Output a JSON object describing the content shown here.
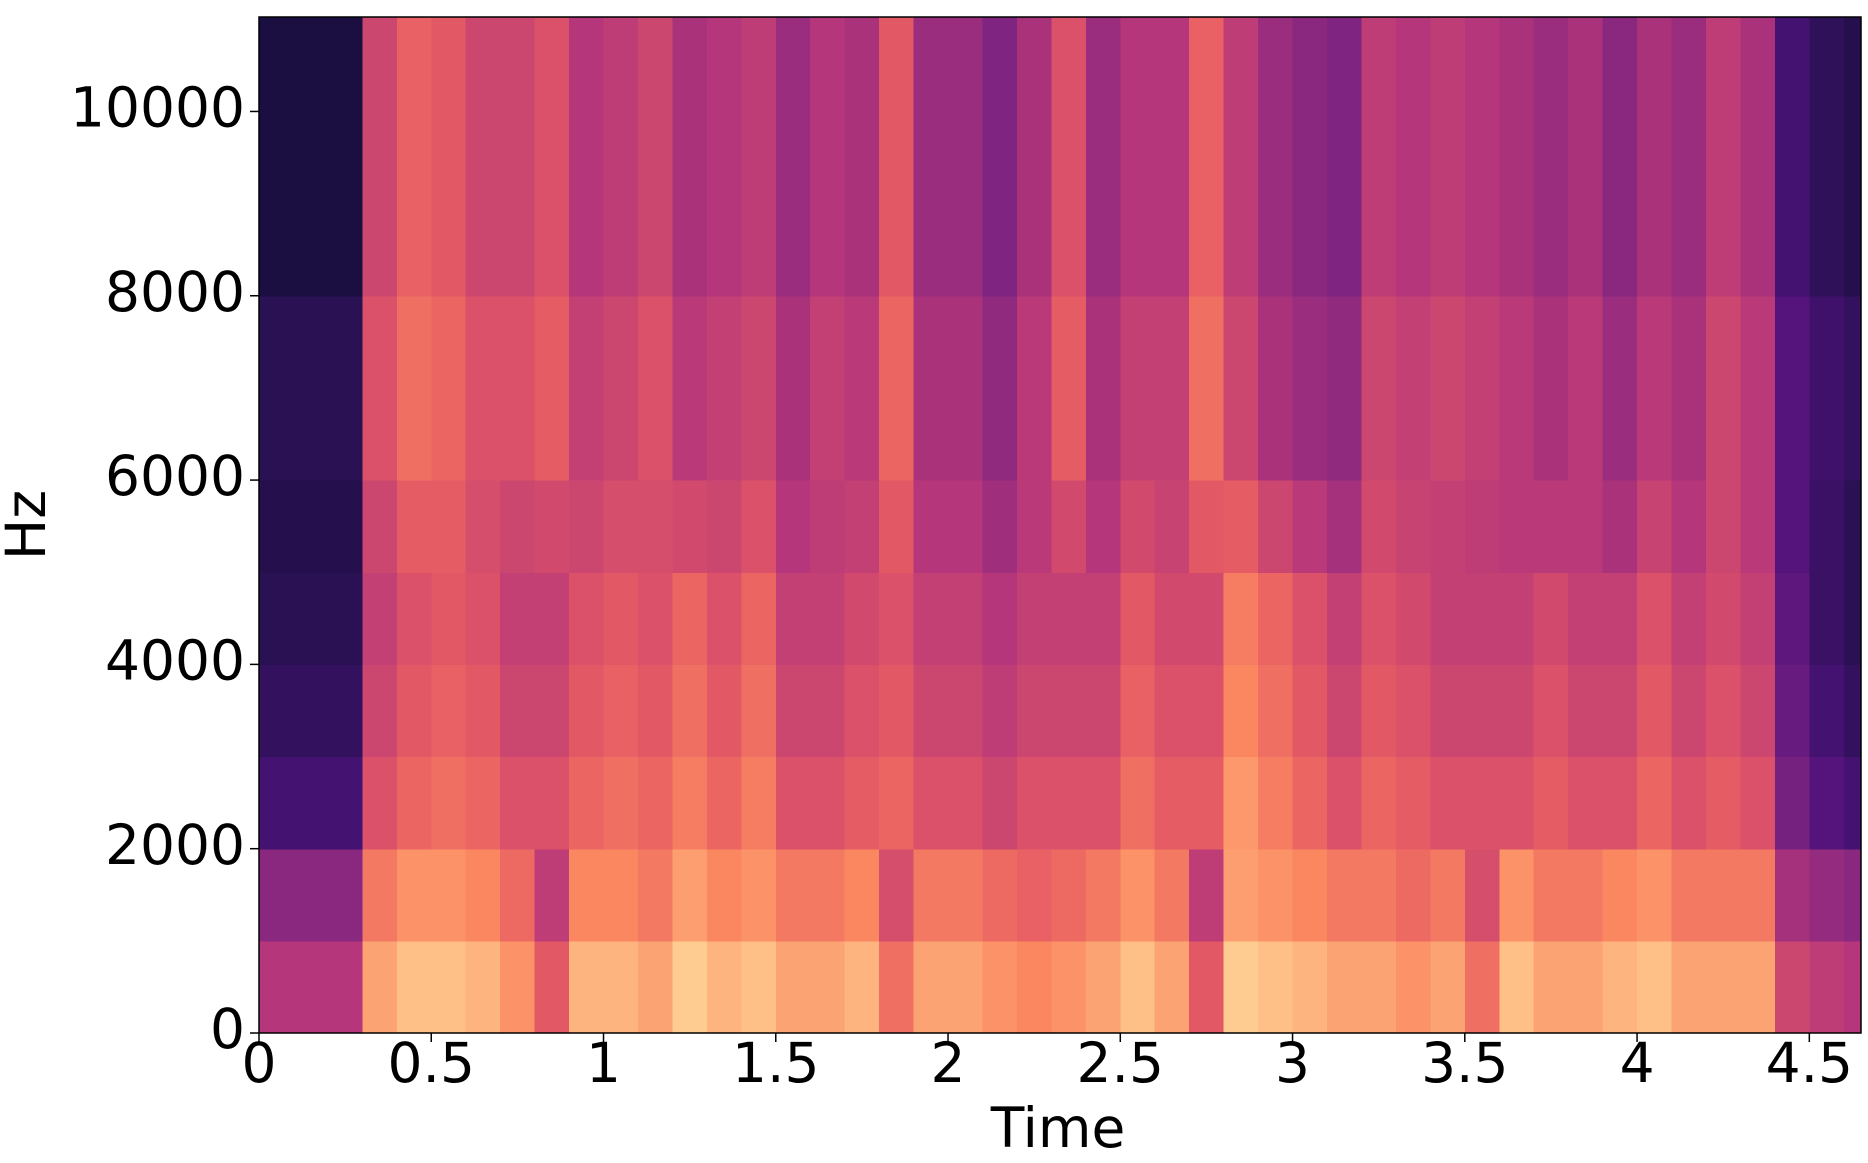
{
  "chart_data": {
    "type": "heatmap",
    "x_label": "Time",
    "y_label": "Hz",
    "colormap": "magma",
    "zlim": [
      -80,
      0
    ],
    "xlim": [
      0,
      4.65
    ],
    "ylim": [
      0,
      11025
    ],
    "xticks": [
      0,
      0.5,
      1,
      1.5,
      2,
      2.5,
      3,
      3.5,
      4,
      4.5
    ],
    "yticks": [
      0,
      2000,
      4000,
      6000,
      8000,
      10000
    ],
    "xbins": [
      0,
      0.1,
      0.2,
      0.3,
      0.4,
      0.5,
      0.6,
      0.7,
      0.8,
      0.9,
      1,
      1.1,
      1.2,
      1.3,
      1.4,
      1.5,
      1.6,
      1.7,
      1.8,
      1.9,
      2,
      2.1,
      2.2,
      2.3,
      2.4,
      2.5,
      2.6,
      2.7,
      2.8,
      2.9,
      3,
      3.1,
      3.2,
      3.3,
      3.4,
      3.5,
      3.6,
      3.7,
      3.8,
      3.9,
      4,
      4.1,
      4.2,
      4.3,
      4.4,
      4.5,
      4.6,
      4.65
    ],
    "ybins": [
      0,
      1000,
      2000,
      3000,
      4000,
      5000,
      6000,
      7000,
      8000,
      9000,
      10000,
      11025
    ],
    "z": [
      [
        -40,
        -40,
        -40,
        -15,
        -10,
        -10,
        -12,
        -18,
        -30,
        -12,
        -12,
        -15,
        -8,
        -12,
        -10,
        -15,
        -15,
        -12,
        -25,
        -15,
        -15,
        -18,
        -20,
        -18,
        -15,
        -10,
        -15,
        -30,
        -8,
        -10,
        -12,
        -15,
        -15,
        -18,
        -15,
        -25,
        -10,
        -15,
        -15,
        -12,
        -10,
        -15,
        -15,
        -15,
        -35,
        -38,
        -40
      ],
      [
        -48,
        -48,
        -48,
        -23,
        -18,
        -18,
        -20,
        -26,
        -38,
        -20,
        -20,
        -23,
        -16,
        -20,
        -18,
        -23,
        -23,
        -20,
        -33,
        -23,
        -23,
        -26,
        -28,
        -26,
        -23,
        -18,
        -23,
        -38,
        -16,
        -18,
        -20,
        -23,
        -23,
        -26,
        -23,
        -33,
        -18,
        -23,
        -23,
        -20,
        -18,
        -23,
        -23,
        -23,
        -43,
        -46,
        -48
      ],
      [
        -62,
        -62,
        -62,
        -32,
        -27,
        -25,
        -27,
        -32,
        -32,
        -27,
        -25,
        -27,
        -22,
        -27,
        -22,
        -32,
        -32,
        -29,
        -27,
        -32,
        -32,
        -35,
        -32,
        -32,
        -32,
        -25,
        -29,
        -29,
        -17,
        -22,
        -27,
        -32,
        -27,
        -29,
        -32,
        -32,
        -32,
        -29,
        -32,
        -32,
        -27,
        -32,
        -29,
        -32,
        -52,
        -59,
        -62
      ],
      [
        -65,
        -65,
        -65,
        -35,
        -30,
        -28,
        -30,
        -35,
        -35,
        -30,
        -28,
        -30,
        -25,
        -30,
        -25,
        -35,
        -35,
        -32,
        -30,
        -35,
        -35,
        -38,
        -35,
        -35,
        -35,
        -28,
        -32,
        -32,
        -20,
        -25,
        -30,
        -35,
        -30,
        -32,
        -35,
        -35,
        -35,
        -32,
        -35,
        -35,
        -30,
        -35,
        -32,
        -35,
        -55,
        -62,
        -65
      ],
      [
        -67,
        -67,
        -67,
        -37,
        -32,
        -30,
        -32,
        -37,
        -37,
        -32,
        -30,
        -32,
        -27,
        -32,
        -27,
        -37,
        -37,
        -34,
        -32,
        -37,
        -37,
        -40,
        -37,
        -37,
        -37,
        -30,
        -34,
        -34,
        -22,
        -27,
        -32,
        -37,
        -32,
        -34,
        -37,
        -37,
        -37,
        -34,
        -37,
        -37,
        -32,
        -37,
        -34,
        -37,
        -57,
        -64,
        -67
      ],
      [
        -68,
        -68,
        -68,
        -35,
        -29,
        -29,
        -33,
        -35,
        -34,
        -35,
        -33,
        -33,
        -34,
        -35,
        -32,
        -40,
        -38,
        -37,
        -30,
        -40,
        -40,
        -44,
        -39,
        -34,
        -40,
        -34,
        -36,
        -30,
        -29,
        -35,
        -39,
        -43,
        -34,
        -36,
        -37,
        -38,
        -39,
        -39,
        -39,
        -42,
        -36,
        -40,
        -35,
        -39,
        -59,
        -64,
        -67
      ],
      [
        -67,
        -67,
        -67,
        -32,
        -25,
        -27,
        -32,
        -32,
        -29,
        -37,
        -35,
        -32,
        -39,
        -37,
        -35,
        -42,
        -37,
        -39,
        -27,
        -42,
        -42,
        -47,
        -39,
        -29,
        -42,
        -37,
        -37,
        -25,
        -35,
        -42,
        -45,
        -47,
        -35,
        -37,
        -35,
        -37,
        -39,
        -42,
        -39,
        -45,
        -39,
        -42,
        -35,
        -39,
        -59,
        -63,
        -65
      ],
      [
        -67,
        -67,
        -67,
        -32,
        -25,
        -27,
        -32,
        -32,
        -29,
        -37,
        -35,
        -32,
        -39,
        -37,
        -35,
        -42,
        -37,
        -39,
        -27,
        -42,
        -42,
        -47,
        -39,
        -29,
        -42,
        -37,
        -37,
        -25,
        -35,
        -42,
        -45,
        -47,
        -35,
        -37,
        -35,
        -37,
        -39,
        -42,
        -39,
        -45,
        -39,
        -42,
        -35,
        -39,
        -59,
        -63,
        -65
      ],
      [
        -70,
        -70,
        -70,
        -35,
        -28,
        -30,
        -35,
        -35,
        -32,
        -40,
        -38,
        -35,
        -42,
        -40,
        -38,
        -45,
        -40,
        -42,
        -30,
        -45,
        -45,
        -50,
        -42,
        -32,
        -45,
        -40,
        -40,
        -28,
        -38,
        -45,
        -48,
        -50,
        -38,
        -40,
        -38,
        -40,
        -42,
        -45,
        -42,
        -48,
        -42,
        -45,
        -38,
        -42,
        -62,
        -66,
        -68
      ],
      [
        -70,
        -70,
        -70,
        -35,
        -28,
        -30,
        -35,
        -35,
        -32,
        -40,
        -38,
        -35,
        -42,
        -40,
        -38,
        -45,
        -40,
        -42,
        -30,
        -45,
        -45,
        -50,
        -42,
        -32,
        -45,
        -40,
        -40,
        -28,
        -38,
        -45,
        -48,
        -50,
        -38,
        -40,
        -38,
        -40,
        -42,
        -45,
        -42,
        -48,
        -42,
        -45,
        -38,
        -42,
        -62,
        -66,
        -68
      ],
      [
        -70,
        -70,
        -70,
        -35,
        -28,
        -30,
        -35,
        -35,
        -32,
        -40,
        -38,
        -35,
        -42,
        -40,
        -38,
        -45,
        -40,
        -42,
        -30,
        -45,
        -45,
        -50,
        -42,
        -32,
        -45,
        -40,
        -40,
        -28,
        -38,
        -45,
        -48,
        -50,
        -38,
        -40,
        -38,
        -40,
        -42,
        -45,
        -42,
        -48,
        -42,
        -45,
        -38,
        -42,
        -62,
        -66,
        -68
      ]
    ]
  }
}
